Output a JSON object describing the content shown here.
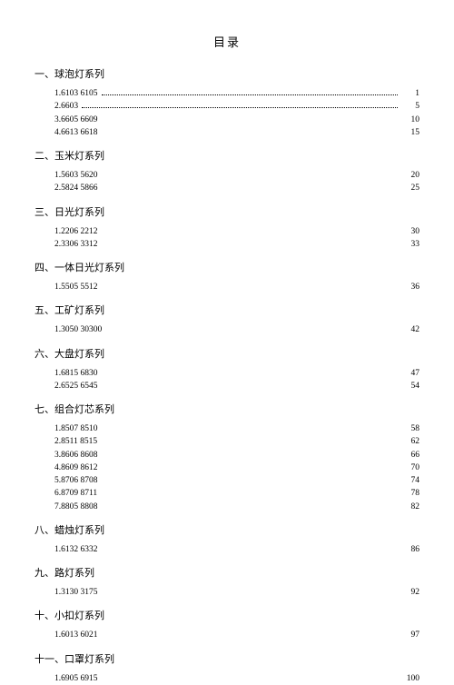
{
  "title": "目录",
  "sections": [
    {
      "head": "一、球泡灯系列",
      "entries": [
        {
          "label": "1.6103 6105",
          "page": "1",
          "dots": true
        },
        {
          "label": "2.6603",
          "page": "5",
          "dots": true
        },
        {
          "label": "3.6605 6609",
          "page": "10",
          "dots": false
        },
        {
          "label": "4.6613 6618",
          "page": "15",
          "dots": false
        }
      ]
    },
    {
      "head": "二、玉米灯系列",
      "entries": [
        {
          "label": "1.5603 5620",
          "page": "20",
          "dots": false
        },
        {
          "label": "2.5824 5866",
          "page": "25",
          "dots": false
        }
      ]
    },
    {
      "head": "三、日光灯系列",
      "entries": [
        {
          "label": "1.2206 2212",
          "page": "30",
          "dots": false
        },
        {
          "label": "2.3306 3312",
          "page": "33",
          "dots": false
        }
      ]
    },
    {
      "head": "四、一体日光灯系列",
      "entries": [
        {
          "label": "1.5505 5512",
          "page": "36",
          "dots": false
        }
      ]
    },
    {
      "head": "五、工矿灯系列",
      "entries": [
        {
          "label": "1.3050 30300",
          "page": "42",
          "dots": false
        }
      ]
    },
    {
      "head": "六、大盘灯系列",
      "entries": [
        {
          "label": "1.6815 6830",
          "page": "47",
          "dots": false
        },
        {
          "label": "2.6525 6545",
          "page": "54",
          "dots": false
        }
      ]
    },
    {
      "head": "七、组合灯芯系列",
      "entries": [
        {
          "label": "1.8507 8510",
          "page": "58",
          "dots": false
        },
        {
          "label": "2.8511 8515",
          "page": "62",
          "dots": false
        },
        {
          "label": "3.8606 8608",
          "page": "66",
          "dots": false
        },
        {
          "label": "4.8609 8612",
          "page": "70",
          "dots": false
        },
        {
          "label": "5.8706 8708",
          "page": "74",
          "dots": false
        },
        {
          "label": "6.8709 8711",
          "page": "78",
          "dots": false
        },
        {
          "label": "7.8805 8808",
          "page": "82",
          "dots": false
        }
      ]
    },
    {
      "head": "八、蜡烛灯系列",
      "entries": [
        {
          "label": "1.6132 6332",
          "page": "86",
          "dots": false
        }
      ]
    },
    {
      "head": "九、路灯系列",
      "entries": [
        {
          "label": "1.3130 3175",
          "page": "92",
          "dots": false
        }
      ]
    },
    {
      "head": "十、小扣灯系列",
      "entries": [
        {
          "label": "1.6013 6021",
          "page": "97",
          "dots": false
        }
      ]
    },
    {
      "head": "十一、口罩灯系列",
      "entries": [
        {
          "label": "1.6905 6915",
          "page": "100",
          "dots": false
        }
      ]
    }
  ]
}
